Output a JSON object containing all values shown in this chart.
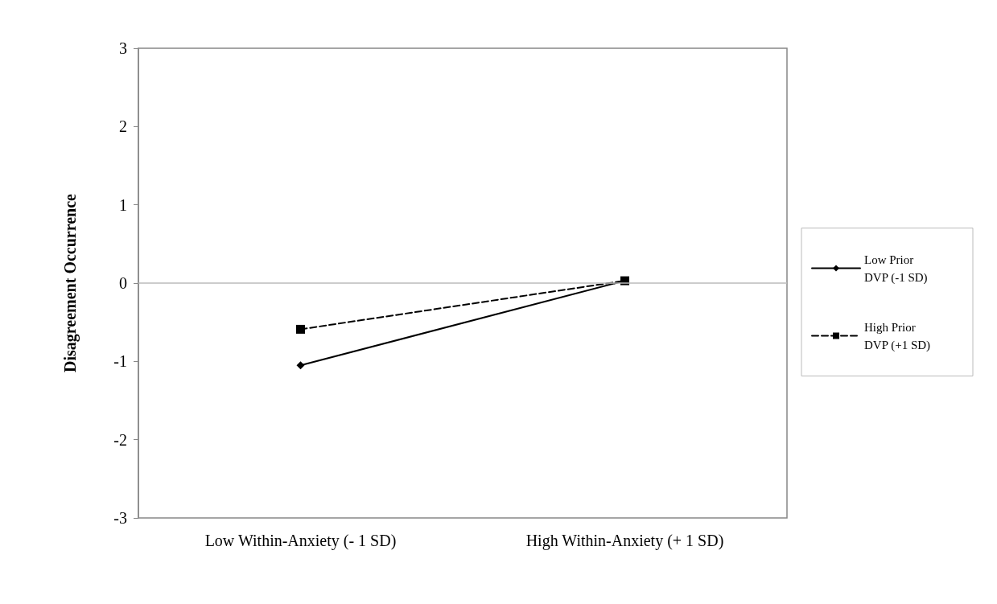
{
  "chart_data": {
    "type": "line",
    "ylabel": "Disagreement Occurrence",
    "categories": [
      "Low Within-Anxiety (- 1 SD)",
      "High Within-Anxiety (+ 1 SD)"
    ],
    "series": [
      {
        "name": "Low Prior DVP (-1 SD)",
        "color": "#000000",
        "values": [
          -1.05,
          0.03
        ],
        "marker": "diamond",
        "line_style": "solid"
      },
      {
        "name": "High Prior DVP (+1 SD)",
        "color": "#000000",
        "values": [
          -0.59,
          0.03
        ],
        "marker": "square",
        "line_style": "dashed"
      }
    ],
    "ref_lines": [
      {
        "axis": "y",
        "value": 0,
        "color": "#bbbbbb"
      }
    ],
    "ylim": [
      -3,
      3
    ],
    "yticks": [
      -3,
      -2,
      -1,
      0,
      1,
      2,
      3
    ],
    "grid": false,
    "legend": "right"
  }
}
